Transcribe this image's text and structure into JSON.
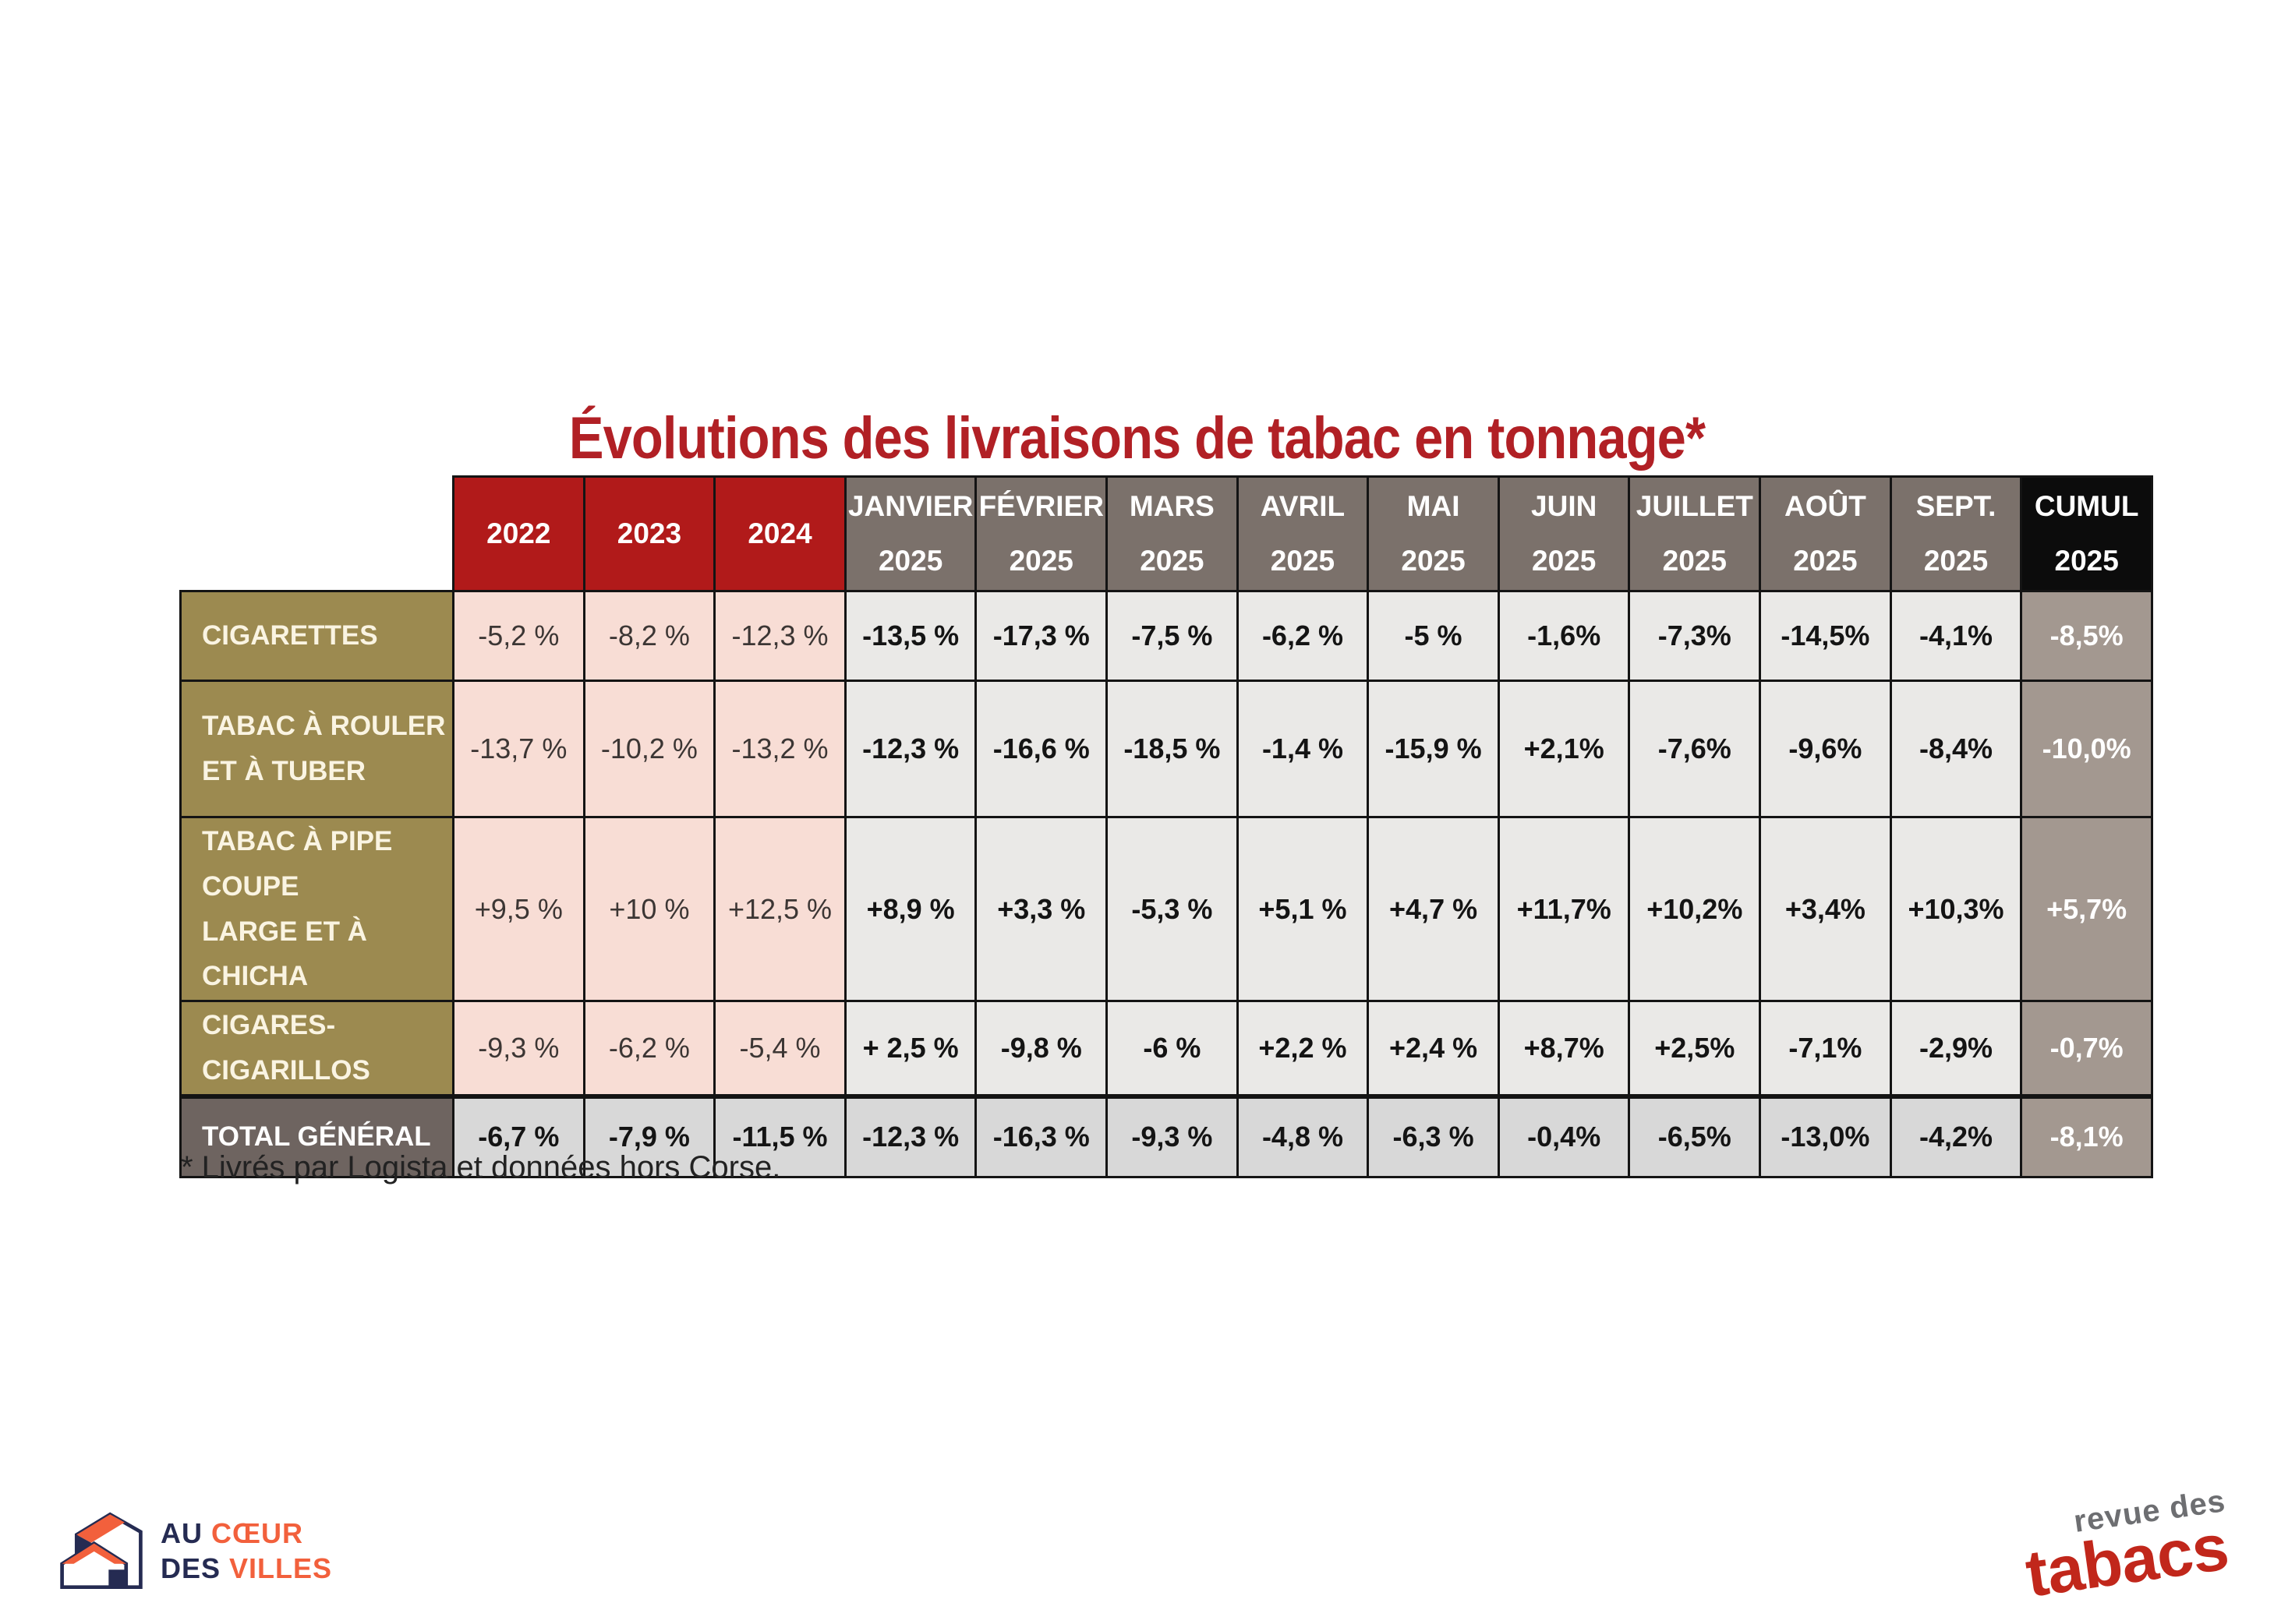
{
  "title": "Évolutions des livraisons de tabac en tonnage*",
  "footnote": "* Livrés par Logista et données hors Corse.",
  "colors": {
    "title_red": "#b12025",
    "year_header_bg": "#b11a1a",
    "month_header_bg": "#7b716b",
    "cumul_header_bg": "#0c0c0c",
    "row_label_bg": "#9c8a50",
    "total_label_bg": "#6e6460",
    "year_cell_bg": "#f8ddd5",
    "month_cell_bg": "#eae9e7",
    "total_row_cell_bg": "#d8d8d8",
    "cumul_cell_bg": "#a39890",
    "border_black": "#141414",
    "logo_navy": "#252b52",
    "logo_orange": "#f2603c",
    "logo_gray": "#6d6e71",
    "logo_red": "#c1271b"
  },
  "chart_data": {
    "type": "table",
    "title": "Évolutions des livraisons de tabac en tonnage*",
    "columns": [
      {
        "line1": "2022",
        "line2": "",
        "group": "year"
      },
      {
        "line1": "2023",
        "line2": "",
        "group": "year"
      },
      {
        "line1": "2024",
        "line2": "",
        "group": "year"
      },
      {
        "line1": "JANVIER",
        "line2": "2025",
        "group": "month"
      },
      {
        "line1": "FÉVRIER",
        "line2": "2025",
        "group": "month"
      },
      {
        "line1": "MARS",
        "line2": "2025",
        "group": "month"
      },
      {
        "line1": "AVRIL",
        "line2": "2025",
        "group": "month"
      },
      {
        "line1": "MAI",
        "line2": "2025",
        "group": "month"
      },
      {
        "line1": "JUIN",
        "line2": "2025",
        "group": "month"
      },
      {
        "line1": "JUILLET",
        "line2": "2025",
        "group": "month"
      },
      {
        "line1": "AOÛT",
        "line2": "2025",
        "group": "month"
      },
      {
        "line1": "SEPT.",
        "line2": "2025",
        "group": "month"
      },
      {
        "line1": "CUMUL",
        "line2": "2025",
        "group": "cumul"
      }
    ],
    "rows": [
      {
        "label_lines": [
          "CIGARETTES"
        ],
        "is_total": false,
        "values": [
          "-5,2 %",
          "-8,2 %",
          "-12,3 %",
          "-13,5 %",
          "-17,3 %",
          "-7,5 %",
          "-6,2 %",
          "-5 %",
          "-1,6%",
          "-7,3%",
          "-14,5%",
          "-4,1%",
          "-8,5%"
        ]
      },
      {
        "label_lines": [
          "TABAC À ROULER",
          "ET À TUBER"
        ],
        "is_total": false,
        "values": [
          "-13,7 %",
          "-10,2 %",
          "-13,2 %",
          "-12,3 %",
          "-16,6 %",
          "-18,5 %",
          "-1,4 %",
          "-15,9 %",
          "+2,1%",
          "-7,6%",
          "-9,6%",
          "-8,4%",
          "-10,0%"
        ]
      },
      {
        "label_lines": [
          "TABAC À PIPE COUPE",
          "LARGE ET À CHICHA"
        ],
        "is_total": false,
        "values": [
          "+9,5 %",
          "+10 %",
          "+12,5 %",
          "+8,9 %",
          "+3,3 %",
          "-5,3 %",
          "+5,1 %",
          "+4,7 %",
          "+11,7%",
          "+10,2%",
          "+3,4%",
          "+10,3%",
          "+5,7%"
        ]
      },
      {
        "label_lines": [
          "CIGARES-CIGARILLOS"
        ],
        "is_total": false,
        "values": [
          "-9,3 %",
          "-6,2 %",
          "-5,4 %",
          "+ 2,5 %",
          "-9,8 %",
          "-6 %",
          "+2,2 %",
          "+2,4 %",
          "+8,7%",
          "+2,5%",
          "-7,1%",
          "-2,9%",
          "-0,7%"
        ]
      },
      {
        "label_lines": [
          "TOTAL GÉNÉRAL"
        ],
        "is_total": true,
        "values": [
          "-6,7 %",
          "-7,9 %",
          "-11,5 %",
          "-12,3 %",
          "-16,3 %",
          "-9,3 %",
          "-4,8 %",
          "-6,3 %",
          "-0,4%",
          "-6,5%",
          "-13,0%",
          "-4,2%",
          "-8,1%"
        ]
      }
    ]
  },
  "footer": {
    "left_logo": {
      "word1": "AU",
      "word2": "CŒUR",
      "word3": "DES",
      "word4": "VILLES"
    },
    "right_logo": {
      "top": "revue des",
      "bottom": "tabacs"
    }
  }
}
